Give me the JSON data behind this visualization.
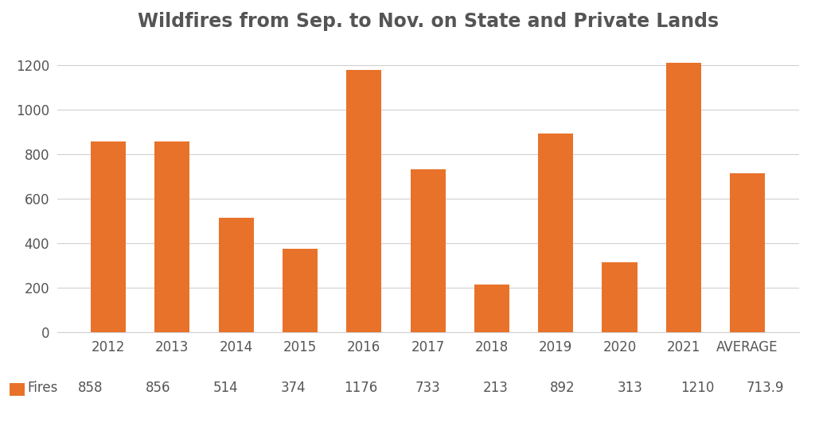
{
  "title": "Wildfires from Sep. to Nov. on State and Private Lands",
  "categories": [
    "2012",
    "2013",
    "2014",
    "2015",
    "2016",
    "2017",
    "2018",
    "2019",
    "2020",
    "2021",
    "AVERAGE"
  ],
  "values": [
    858,
    856,
    514,
    374,
    1176,
    733,
    213,
    892,
    313,
    1210,
    713.9
  ],
  "value_labels": [
    "858",
    "856",
    "514",
    "374",
    "1176",
    "733",
    "213",
    "892",
    "313",
    "1210",
    "713.9"
  ],
  "bar_color": "#E8722A",
  "background_color": "#ffffff",
  "ylim": [
    0,
    1300
  ],
  "yticks": [
    0,
    200,
    400,
    600,
    800,
    1000,
    1200
  ],
  "title_fontsize": 17,
  "tick_fontsize": 12,
  "legend_label": "Fires",
  "legend_color": "#E8722A",
  "grid_color": "#d0d0d0",
  "text_color": "#555555"
}
